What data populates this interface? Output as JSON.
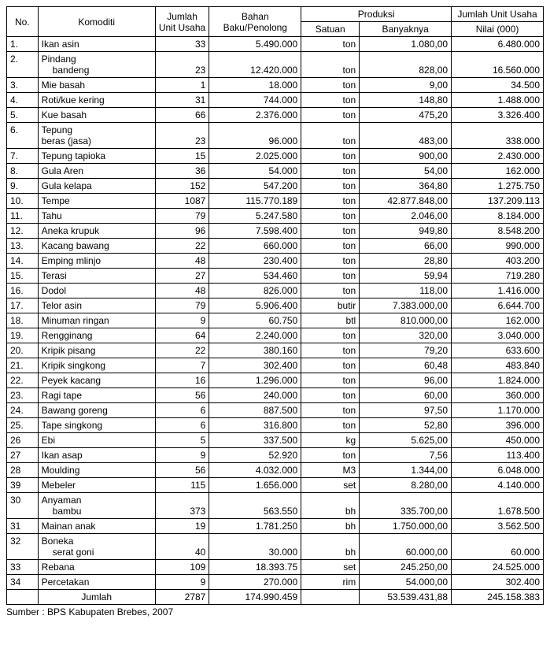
{
  "headers": {
    "no": "No.",
    "komoditi": "Komoditi",
    "jumlah_unit_usaha": "Jumlah Unit Usaha",
    "bahan": "Bahan Baku/Penolong",
    "produksi": "Produksi",
    "satuan": "Satuan",
    "banyaknya": "Banyaknya",
    "jumlah_unit_usaha2": "Jumlah Unit Usaha",
    "nilai": "Nilai (000)"
  },
  "rows": [
    {
      "no": "1.",
      "komoditi": "Ikan asin",
      "unit": "33",
      "bahan": "5.490.000",
      "satuan": "ton",
      "banyak": "1.080,00",
      "nilai": "6.480.000"
    },
    {
      "no": "2.",
      "komoditi": "Pindang bandeng",
      "wrap": true,
      "indent": true,
      "unit": "23",
      "bahan": "12.420.000",
      "satuan": "ton",
      "banyak": "828,00",
      "nilai": "16.560.000"
    },
    {
      "no": "3.",
      "komoditi": "Mie basah",
      "unit": "1",
      "bahan": "18.000",
      "satuan": "ton",
      "banyak": "9,00",
      "nilai": "34.500"
    },
    {
      "no": "4.",
      "komoditi": "Roti/kue kering",
      "unit": "31",
      "bahan": "744.000",
      "satuan": "ton",
      "banyak": "148,80",
      "nilai": "1.488.000"
    },
    {
      "no": "5.",
      "komoditi": "Kue basah",
      "unit": "66",
      "bahan": "2.376.000",
      "satuan": "ton",
      "banyak": "475,20",
      "nilai": "3.326.400"
    },
    {
      "no": "6.",
      "komoditi": "Tepung beras (jasa)",
      "wrap": true,
      "unit": "23",
      "bahan": "96.000",
      "satuan": "ton",
      "banyak": "483,00",
      "nilai": "338.000"
    },
    {
      "no": "7.",
      "komoditi": "Tepung tapioka",
      "unit": "15",
      "bahan": "2.025.000",
      "satuan": "ton",
      "banyak": "900,00",
      "nilai": "2.430.000"
    },
    {
      "no": "8.",
      "komoditi": "Gula Aren",
      "unit": "36",
      "bahan": "54.000",
      "satuan": "ton",
      "banyak": "54,00",
      "nilai": "162.000"
    },
    {
      "no": "9.",
      "komoditi": "Gula kelapa",
      "unit": "152",
      "bahan": "547.200",
      "satuan": "ton",
      "banyak": "364,80",
      "nilai": "1.275.750"
    },
    {
      "no": "10.",
      "komoditi": "Tempe",
      "unit": "1087",
      "bahan": "115.770.189",
      "satuan": "ton",
      "banyak": "42.877.848,00",
      "nilai": "137.209.113"
    },
    {
      "no": "11.",
      "komoditi": "Tahu",
      "unit": "79",
      "bahan": "5.247.580",
      "satuan": "ton",
      "banyak": "2.046,00",
      "nilai": "8.184.000"
    },
    {
      "no": "12.",
      "komoditi": "Aneka krupuk",
      "unit": "96",
      "bahan": "7.598.400",
      "satuan": "ton",
      "banyak": "949,80",
      "nilai": "8.548.200"
    },
    {
      "no": "13.",
      "komoditi": "Kacang bawang",
      "unit": "22",
      "bahan": "660.000",
      "satuan": "ton",
      "banyak": "66,00",
      "nilai": "990.000"
    },
    {
      "no": "14.",
      "komoditi": "Emping mlinjo",
      "unit": "48",
      "bahan": "230.400",
      "satuan": "ton",
      "banyak": "28,80",
      "nilai": "403.200"
    },
    {
      "no": "15.",
      "komoditi": "Terasi",
      "unit": "27",
      "bahan": "534.460",
      "satuan": "ton",
      "banyak": "59,94",
      "nilai": "719.280"
    },
    {
      "no": "16.",
      "komoditi": "Dodol",
      "unit": "48",
      "bahan": "826.000",
      "satuan": "ton",
      "banyak": "118,00",
      "nilai": "1.416.000"
    },
    {
      "no": "17.",
      "komoditi": "Telor asin",
      "unit": "79",
      "bahan": "5.906.400",
      "satuan": "butir",
      "banyak": "7.383.000,00",
      "nilai": "6.644.700"
    },
    {
      "no": "18.",
      "komoditi": "Minuman ringan",
      "unit": "9",
      "bahan": "60.750",
      "satuan": "btl",
      "banyak": "810.000,00",
      "nilai": "162.000"
    },
    {
      "no": "19.",
      "komoditi": "Rengginang",
      "unit": "64",
      "bahan": "2.240.000",
      "satuan": "ton",
      "banyak": "320,00",
      "nilai": "3.040.000"
    },
    {
      "no": "20.",
      "komoditi": "Kripik pisang",
      "unit": "22",
      "bahan": "380.160",
      "satuan": "ton",
      "banyak": "79,20",
      "nilai": "633.600"
    },
    {
      "no": "21.",
      "komoditi": "Kripik singkong",
      "unit": "7",
      "bahan": "302.400",
      "satuan": "ton",
      "banyak": "60,48",
      "nilai": "483.840"
    },
    {
      "no": "22.",
      "komoditi": "Peyek kacang",
      "unit": "16",
      "bahan": "1.296.000",
      "satuan": "ton",
      "banyak": "96,00",
      "nilai": "1.824.000"
    },
    {
      "no": "23.",
      "komoditi": "Ragi tape",
      "unit": "56",
      "bahan": "240.000",
      "satuan": "ton",
      "banyak": "60,00",
      "nilai": "360.000"
    },
    {
      "no": "24.",
      "komoditi": "Bawang goreng",
      "unit": "6",
      "bahan": "887.500",
      "satuan": "ton",
      "banyak": "97,50",
      "nilai": "1.170.000"
    },
    {
      "no": "25.",
      "komoditi": "Tape singkong",
      "unit": "6",
      "bahan": "316.800",
      "satuan": "ton",
      "banyak": "52,80",
      "nilai": "396.000"
    },
    {
      "no": "26",
      "komoditi": "Ebi",
      "unit": "5",
      "bahan": "337.500",
      "satuan": "kg",
      "banyak": "5.625,00",
      "nilai": "450.000"
    },
    {
      "no": "27",
      "komoditi": "Ikan asap",
      "unit": "9",
      "bahan": "52.920",
      "satuan": "ton",
      "banyak": "7,56",
      "nilai": "113.400"
    },
    {
      "no": "28",
      "komoditi": "Moulding",
      "unit": "56",
      "bahan": "4.032.000",
      "satuan": "M3",
      "banyak": "1.344,00",
      "nilai": "6.048.000"
    },
    {
      "no": "39",
      "komoditi": "Mebeler",
      "unit": "115",
      "bahan": "1.656.000",
      "satuan": "set",
      "banyak": "8.280,00",
      "nilai": "4.140.000"
    },
    {
      "no": "30",
      "komoditi": "Anyaman bambu",
      "wrap": true,
      "indent": true,
      "unit": "373",
      "bahan": "563.550",
      "satuan": "bh",
      "banyak": "335.700,00",
      "nilai": "1.678.500"
    },
    {
      "no": "31",
      "komoditi": "Mainan anak",
      "unit": "19",
      "bahan": "1.781.250",
      "satuan": "bh",
      "banyak": "1.750.000,00",
      "nilai": "3.562.500"
    },
    {
      "no": "32",
      "komoditi": "Boneka serat goni",
      "wrap": true,
      "indent": true,
      "unit": "40",
      "bahan": "30.000",
      "satuan": "bh",
      "banyak": "60.000,00",
      "nilai": "60.000"
    },
    {
      "no": "33",
      "komoditi": "Rebana",
      "unit": "109",
      "bahan": "18.393.75",
      "satuan": "set",
      "banyak": "245.250,00",
      "nilai": "24.525.000"
    },
    {
      "no": "34",
      "komoditi": "Percetakan",
      "unit": "9",
      "bahan": "270.000",
      "satuan": "rim",
      "banyak": "54.000,00",
      "nilai": "302.400"
    }
  ],
  "total": {
    "label": "Jumlah",
    "unit": "2787",
    "bahan": "174.990.459",
    "satuan": "",
    "banyak": "53.539.431,88",
    "nilai": "245.158.383"
  },
  "source": "Sumber : BPS Kabupaten Brebes, 2007"
}
